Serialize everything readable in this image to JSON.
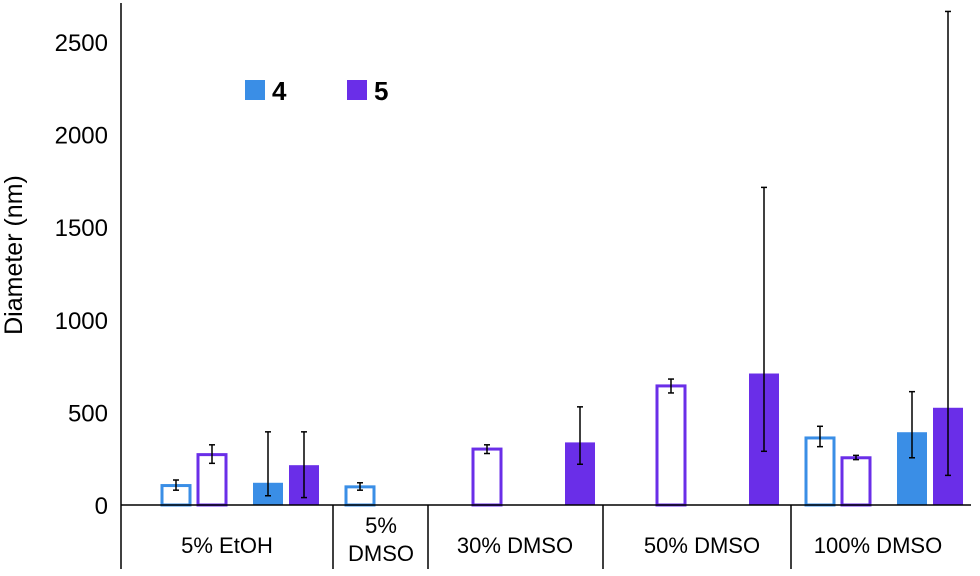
{
  "chart_data": {
    "type": "bar",
    "ylabel": "Diameter (nm)",
    "ylim": [
      0,
      2700
    ],
    "yticks": [
      0,
      500,
      1000,
      1500,
      2000,
      2500
    ],
    "groups": [
      "5% EtOH",
      "5% DMSO",
      "30% DMSO",
      "50% DMSO",
      "100% DMSO"
    ],
    "legend": [
      {
        "label": "4",
        "color": "#3a8ee6"
      },
      {
        "label": "5",
        "color": "#6a2ee8"
      }
    ],
    "colors": {
      "blue": "#3a8ee6",
      "purple": "#6a2ee8"
    },
    "bars": [
      {
        "group": "5% EtOH",
        "compound": "4",
        "style": "open",
        "value": 105,
        "err_low": 80,
        "err_high": 135
      },
      {
        "group": "5% EtOH",
        "compound": "5",
        "style": "open",
        "value": 272,
        "err_low": 225,
        "err_high": 325
      },
      {
        "group": "5% EtOH",
        "compound": "4",
        "style": "filled",
        "value": 120,
        "err_low": 50,
        "err_high": 395
      },
      {
        "group": "5% EtOH",
        "compound": "5",
        "style": "filled",
        "value": 215,
        "err_low": 40,
        "err_high": 395
      },
      {
        "group": "5% DMSO",
        "compound": "4",
        "style": "open",
        "value": 98,
        "err_low": 80,
        "err_high": 120
      },
      {
        "group": "30% DMSO",
        "compound": "5",
        "style": "open",
        "value": 302,
        "err_low": 278,
        "err_high": 325
      },
      {
        "group": "30% DMSO",
        "compound": "5",
        "style": "filled",
        "value": 338,
        "err_low": 220,
        "err_high": 530
      },
      {
        "group": "50% DMSO",
        "compound": "5",
        "style": "open",
        "value": 643,
        "err_low": 605,
        "err_high": 680
      },
      {
        "group": "50% DMSO",
        "compound": "5",
        "style": "filled",
        "value": 710,
        "err_low": 290,
        "err_high": 1715
      },
      {
        "group": "100% DMSO",
        "compound": "4",
        "style": "open",
        "value": 362,
        "err_low": 315,
        "err_high": 425
      },
      {
        "group": "100% DMSO",
        "compound": "5",
        "style": "open",
        "value": 255,
        "err_low": 245,
        "err_high": 268
      },
      {
        "group": "100% DMSO",
        "compound": "4",
        "style": "filled",
        "value": 393,
        "err_low": 255,
        "err_high": 612
      },
      {
        "group": "100% DMSO",
        "compound": "5",
        "style": "filled",
        "value": 525,
        "err_low": 160,
        "err_high": 2665
      }
    ]
  }
}
